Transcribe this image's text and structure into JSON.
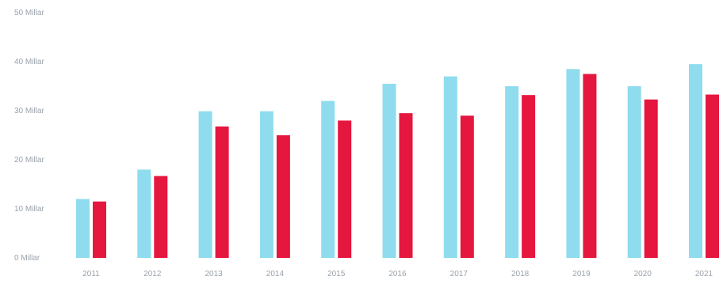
{
  "chart_data": {
    "type": "bar",
    "title": "",
    "xlabel": "",
    "ylabel": "",
    "categories": [
      "2011",
      "2012",
      "2013",
      "2014",
      "2015",
      "2016",
      "2017",
      "2018",
      "2019",
      "2020",
      "2021"
    ],
    "series": [
      {
        "color": "#8fdcee",
        "values": [
          12.0,
          18.0,
          29.9,
          29.9,
          32.0,
          35.5,
          37.0,
          35.0,
          38.5,
          35.0,
          39.5
        ]
      },
      {
        "color": "#e5173f",
        "values": [
          11.5,
          16.7,
          26.8,
          25.0,
          28.0,
          29.5,
          29.0,
          33.2,
          37.5,
          32.3,
          33.3
        ]
      }
    ],
    "ylim": [
      0,
      50
    ],
    "yticks": [
      0,
      10,
      20,
      30,
      40,
      50
    ],
    "ytick_labels": [
      "0 Millar",
      "10 Millar",
      "20 Millar",
      "30 Millar",
      "40 Millar",
      "50 Millar"
    ],
    "grid": false,
    "legend": "none"
  }
}
